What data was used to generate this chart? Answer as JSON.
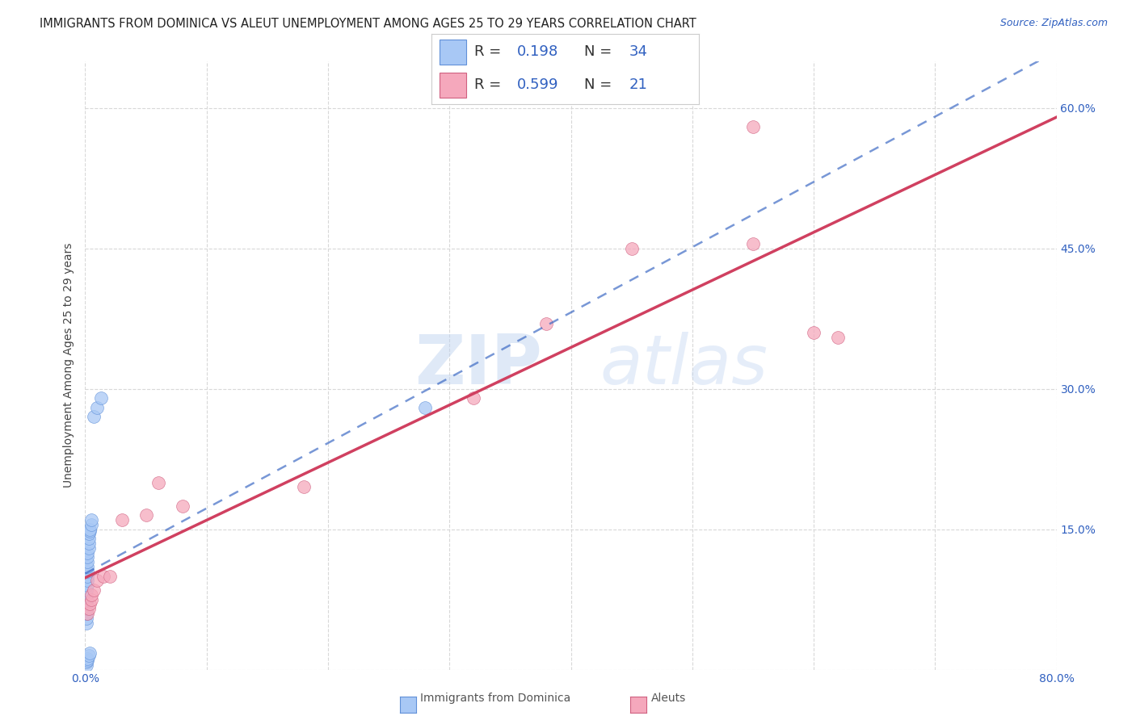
{
  "title": "IMMIGRANTS FROM DOMINICA VS ALEUT UNEMPLOYMENT AMONG AGES 25 TO 29 YEARS CORRELATION CHART",
  "source": "Source: ZipAtlas.com",
  "ylabel": "Unemployment Among Ages 25 to 29 years",
  "xlim": [
    0.0,
    0.8
  ],
  "ylim": [
    0.0,
    0.65
  ],
  "xticks": [
    0.0,
    0.1,
    0.2,
    0.3,
    0.4,
    0.5,
    0.6,
    0.7,
    0.8
  ],
  "yticks": [
    0.0,
    0.15,
    0.3,
    0.45,
    0.6
  ],
  "yticklabels": [
    "",
    "15.0%",
    "30.0%",
    "45.0%",
    "60.0%"
  ],
  "dominica_x": [
    0.001,
    0.001,
    0.001,
    0.001,
    0.001,
    0.001,
    0.001,
    0.001,
    0.002,
    0.002,
    0.002,
    0.002,
    0.002,
    0.002,
    0.002,
    0.002,
    0.003,
    0.003,
    0.003,
    0.003,
    0.004,
    0.004,
    0.005,
    0.005,
    0.007,
    0.01,
    0.013,
    0.001,
    0.001,
    0.002,
    0.002,
    0.003,
    0.004,
    0.28
  ],
  "dominica_y": [
    0.05,
    0.055,
    0.06,
    0.065,
    0.07,
    0.075,
    0.08,
    0.085,
    0.09,
    0.095,
    0.1,
    0.105,
    0.11,
    0.115,
    0.12,
    0.125,
    0.13,
    0.135,
    0.14,
    0.145,
    0.148,
    0.15,
    0.155,
    0.16,
    0.27,
    0.28,
    0.29,
    0.005,
    0.008,
    0.01,
    0.012,
    0.015,
    0.018,
    0.28
  ],
  "aleut_x": [
    0.002,
    0.003,
    0.004,
    0.005,
    0.005,
    0.007,
    0.01,
    0.015,
    0.02,
    0.03,
    0.05,
    0.06,
    0.08,
    0.18,
    0.32,
    0.38,
    0.45,
    0.55,
    0.6,
    0.62,
    0.55
  ],
  "aleut_y": [
    0.06,
    0.065,
    0.07,
    0.075,
    0.08,
    0.085,
    0.095,
    0.1,
    0.1,
    0.16,
    0.165,
    0.2,
    0.175,
    0.195,
    0.29,
    0.37,
    0.45,
    0.58,
    0.36,
    0.355,
    0.455
  ],
  "dominica_color": "#a8c8f5",
  "aleut_color": "#f5a8bc",
  "dominica_edge": "#6090d8",
  "aleut_edge": "#d06080",
  "trendline_dominica_color": "#3060c0",
  "trendline_aleut_color": "#d04060",
  "r_dominica": "0.198",
  "n_dominica": "34",
  "r_aleut": "0.599",
  "n_aleut": "21",
  "watermark_zip": "ZIP",
  "watermark_atlas": "atlas",
  "background_color": "#ffffff",
  "grid_color": "#d8d8d8",
  "marker_size": 130,
  "title_fontsize": 10.5,
  "axis_label_fontsize": 10,
  "tick_fontsize": 10,
  "legend_fontsize": 13,
  "source_fontsize": 9,
  "blue_text_color": "#3060c0"
}
